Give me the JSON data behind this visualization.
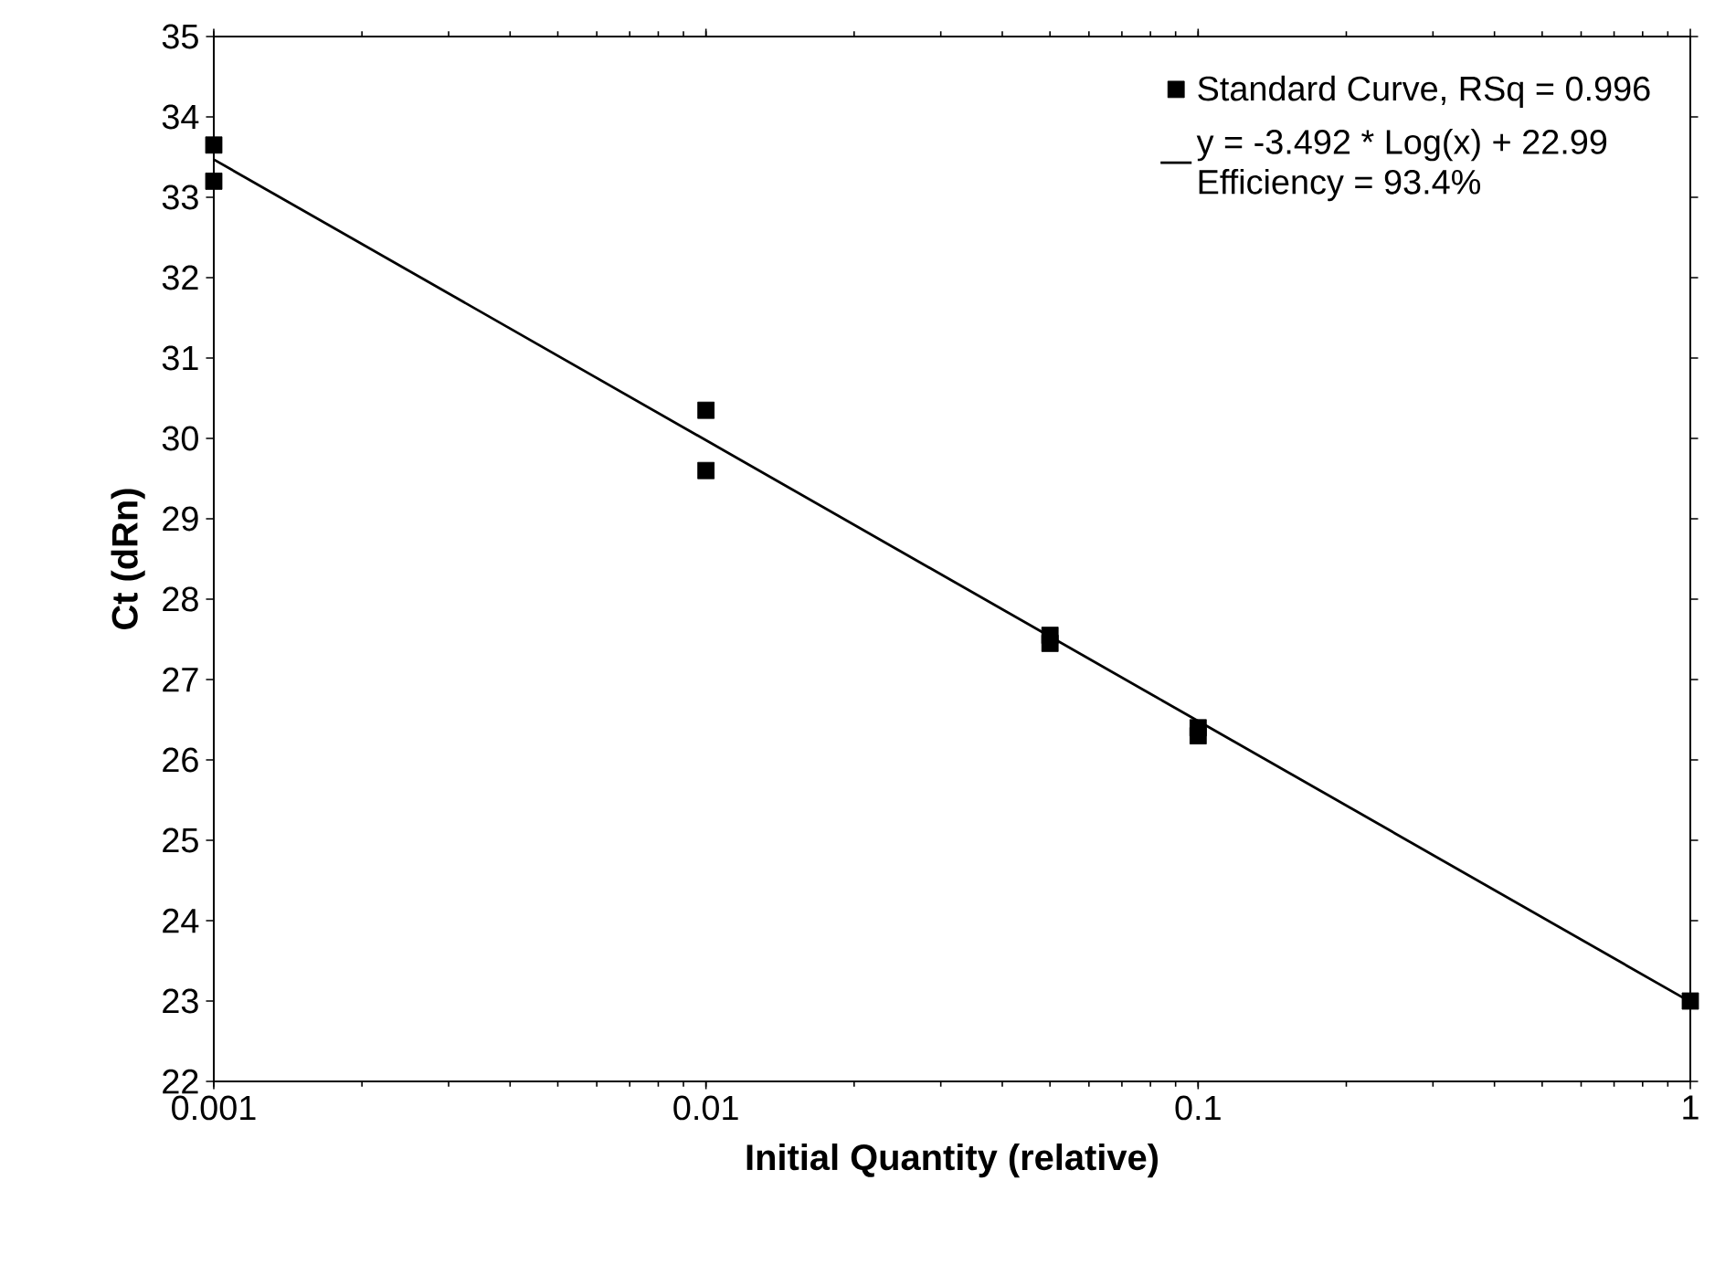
{
  "chart_data": {
    "type": "scatter",
    "xlabel": "Initial Quantity (relative)",
    "ylabel": "Ct (dRn)",
    "log": "x",
    "xlim": [
      0.001,
      1
    ],
    "xticks": [
      0.001,
      0.01,
      0.1,
      1
    ],
    "ylim": [
      22,
      35
    ],
    "yticks": [
      22,
      23,
      24,
      25,
      26,
      27,
      28,
      29,
      30,
      31,
      32,
      33,
      34,
      35
    ],
    "grid": false,
    "legend": "top right",
    "marker": "square",
    "series": [
      {
        "name": "Standard Curve, RSq = 0.996",
        "color": "#000000",
        "x": [
          0.001,
          0.001,
          0.01,
          0.01,
          0.05,
          0.05,
          0.1,
          0.1,
          1
        ],
        "values": [
          33.65,
          33.2,
          30.35,
          29.6,
          27.55,
          27.45,
          26.4,
          26.3,
          23.0
        ]
      },
      {
        "name": "y = -3.492 * Log(x) + 22.99",
        "type": "line",
        "marker": "none",
        "line_style": "solid",
        "color": "#000000",
        "x": [
          0.001,
          1
        ],
        "values": [
          33.47,
          22.99
        ]
      }
    ],
    "annotations": [
      "Efficiency = 93.4%"
    ]
  }
}
